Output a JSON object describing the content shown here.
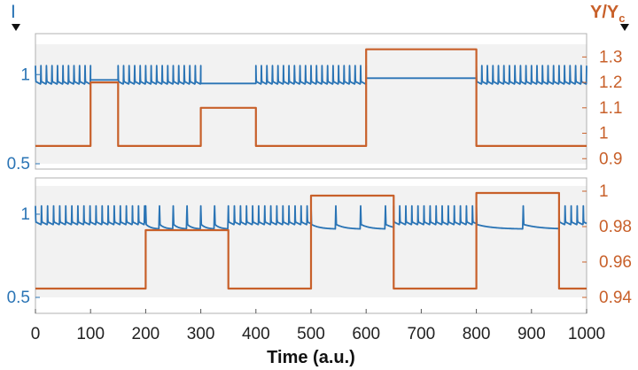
{
  "chart_data": [
    {
      "type": "line",
      "panel": "top",
      "x_range": [
        0,
        1000
      ],
      "left_axis": {
        "label": "I",
        "ticks": [
          0.5,
          1
        ],
        "range": [
          0.5,
          1.17
        ]
      },
      "right_axis": {
        "label": "Y/Y",
        "label_sub": "c",
        "ticks": [
          0.9,
          1,
          1.1,
          1.2,
          1.3
        ],
        "range": [
          0.88,
          1.35
        ]
      },
      "series": [
        {
          "axis": "left",
          "color": "#2a74b5",
          "segments": [
            {
              "from": 0,
              "to": 100,
              "mode": "spikes",
              "period": 10,
              "base": 0.93,
              "peak": 1.05
            },
            {
              "from": 100,
              "to": 150,
              "mode": "flat",
              "level": 0.97
            },
            {
              "from": 150,
              "to": 300,
              "mode": "spikes",
              "period": 10,
              "base": 0.93,
              "peak": 1.05
            },
            {
              "from": 300,
              "to": 400,
              "mode": "flat",
              "level": 0.95
            },
            {
              "from": 400,
              "to": 600,
              "mode": "spikes",
              "period": 10,
              "base": 0.93,
              "peak": 1.05
            },
            {
              "from": 600,
              "to": 800,
              "mode": "flat",
              "level": 0.98
            },
            {
              "from": 800,
              "to": 1000,
              "mode": "spikes",
              "period": 10,
              "base": 0.93,
              "peak": 1.05
            }
          ]
        },
        {
          "axis": "right",
          "color": "#c8602a",
          "steps": [
            {
              "from": 0,
              "to": 100,
              "value": 0.95
            },
            {
              "from": 100,
              "to": 150,
              "value": 1.2
            },
            {
              "from": 150,
              "to": 300,
              "value": 0.95
            },
            {
              "from": 300,
              "to": 400,
              "value": 1.1
            },
            {
              "from": 400,
              "to": 600,
              "value": 0.95
            },
            {
              "from": 600,
              "to": 800,
              "value": 1.33
            },
            {
              "from": 800,
              "to": 1000,
              "value": 0.95
            }
          ]
        }
      ]
    },
    {
      "type": "line",
      "panel": "bottom",
      "x_range": [
        0,
        1000
      ],
      "xlabel": "Time (a.u.)",
      "x_ticks": [
        0,
        100,
        200,
        300,
        400,
        500,
        600,
        700,
        800,
        900,
        1000
      ],
      "left_axis": {
        "ticks": [
          0.5,
          1
        ],
        "range": [
          0.5,
          1.17
        ]
      },
      "right_axis": {
        "ticks": [
          0.94,
          0.96,
          0.98,
          1
        ],
        "range": [
          0.94,
          1.003
        ]
      },
      "series": [
        {
          "axis": "left",
          "color": "#2a74b5",
          "segments": [
            {
              "from": 0,
              "to": 200,
              "mode": "spikes",
              "period": 11,
              "base": 0.92,
              "peak": 1.05
            },
            {
              "from": 200,
              "to": 350,
              "mode": "decay",
              "period": 25,
              "base": 0.91,
              "peak": 1.05
            },
            {
              "from": 350,
              "to": 500,
              "mode": "spikes",
              "period": 11,
              "base": 0.92,
              "peak": 1.05
            },
            {
              "from": 500,
              "to": 650,
              "mode": "decay",
              "period": 45,
              "base": 0.91,
              "peak": 1.05
            },
            {
              "from": 650,
              "to": 800,
              "mode": "spikes",
              "period": 11,
              "base": 0.92,
              "peak": 1.05
            },
            {
              "from": 800,
              "to": 950,
              "mode": "decay",
              "period": 85,
              "base": 0.91,
              "peak": 1.05
            },
            {
              "from": 950,
              "to": 1000,
              "mode": "spikes",
              "period": 11,
              "base": 0.92,
              "peak": 1.05
            }
          ]
        },
        {
          "axis": "right",
          "color": "#c8602a",
          "steps": [
            {
              "from": 0,
              "to": 200,
              "value": 0.945
            },
            {
              "from": 200,
              "to": 350,
              "value": 0.978
            },
            {
              "from": 350,
              "to": 500,
              "value": 0.945
            },
            {
              "from": 500,
              "to": 650,
              "value": 0.9975
            },
            {
              "from": 650,
              "to": 800,
              "value": 0.945
            },
            {
              "from": 800,
              "to": 950,
              "value": 0.999
            },
            {
              "from": 950,
              "to": 1000,
              "value": 0.945
            }
          ]
        }
      ]
    }
  ]
}
